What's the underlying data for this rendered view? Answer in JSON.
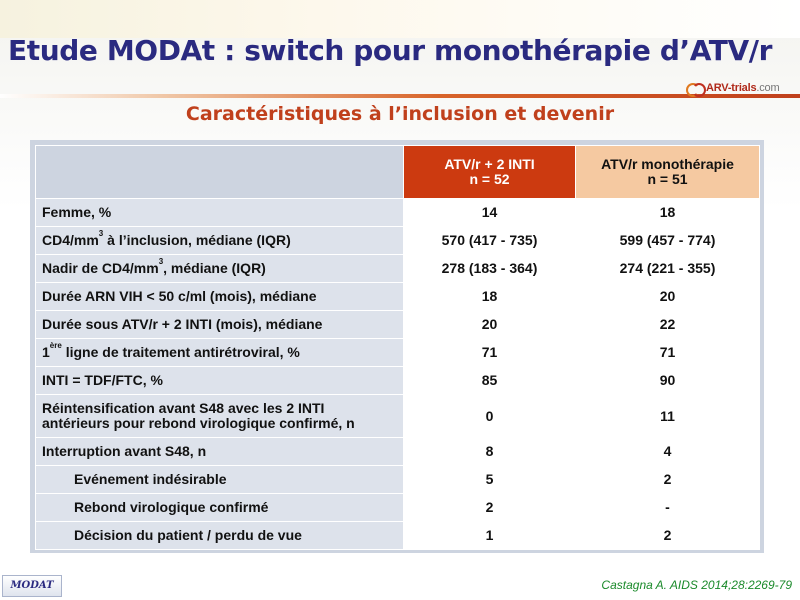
{
  "slide": {
    "title": "Etude MODAt : switch pour monothérapie d’ATV/r",
    "subtitle": "Caractéristiques à l’inclusion et devenir",
    "logo_text": "ARV-trials",
    "logo_suffix": ".com",
    "badge": "MODAT",
    "reference": "Castagna A. AIDS 2014;28:2269-79"
  },
  "colors": {
    "title": "#2a2a80",
    "accent": "#c0401c",
    "group1_header": "#cc3a10",
    "group2_header": "#f5c9a1",
    "label_cell": "#dde2eb",
    "reference": "#1a8a2a"
  },
  "table": {
    "headers": [
      {
        "line1": "ATV/r + 2 INTI",
        "line2": "n = 52"
      },
      {
        "line1": "ATV/r monothérapie",
        "line2": "n = 51"
      }
    ],
    "rows": [
      {
        "label": "Femme, %",
        "v1": "14",
        "v2": "18"
      },
      {
        "label_pre": "CD4/mm",
        "label_sup": "3",
        "label_post": " à l’inclusion, médiane (IQR)",
        "v1": "570 (417 - 735)",
        "v2": "599 (457 - 774)"
      },
      {
        "label_pre": "Nadir de CD4/mm",
        "label_sup": "3",
        "label_post": ", médiane (IQR)",
        "v1": "278 (183 - 364)",
        "v2": "274 (221 - 355)"
      },
      {
        "label": "Durée ARN VIH < 50 c/ml (mois), médiane",
        "v1": "18",
        "v2": "20"
      },
      {
        "label": "Durée sous ATV/r + 2 INTI (mois), médiane",
        "v1": "20",
        "v2": "22"
      },
      {
        "label_pre": "1",
        "label_sup": "ère",
        "label_post": " ligne de traitement antirétroviral, %",
        "v1": "71",
        "v2": "71"
      },
      {
        "label": "INTI = TDF/FTC, %",
        "v1": "85",
        "v2": "90"
      },
      {
        "label_line1": "Réintensification avant S48 avec les 2 INTI",
        "label_line2": "antérieurs pour rebond virologique confirmé, n",
        "v1": "0",
        "v2": "11"
      },
      {
        "label": "Interruption avant S48, n",
        "v1": "8",
        "v2": "4"
      },
      {
        "label": "Evénement indésirable",
        "v1": "5",
        "v2": "2"
      },
      {
        "label": "Rebond virologique confirmé",
        "v1": "2",
        "v2": "-"
      },
      {
        "label": "Décision du patient / perdu de vue",
        "v1": "1",
        "v2": "2"
      }
    ]
  }
}
